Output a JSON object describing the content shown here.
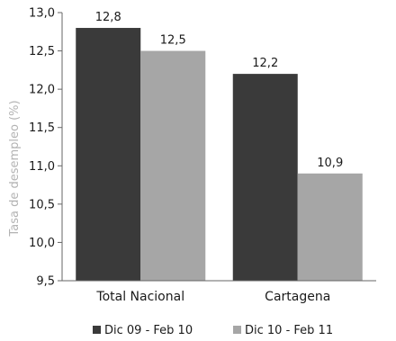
{
  "chart_data": {
    "type": "bar",
    "categories": [
      "Total Nacional",
      "Cartagena"
    ],
    "series": [
      {
        "name": "Dic 09 - Feb 10",
        "values": [
          12.8,
          12.2
        ],
        "color": "#3a3a3a"
      },
      {
        "name": "Dic 10 - Feb 11",
        "values": [
          12.5,
          10.9
        ],
        "color": "#a6a6a6"
      }
    ],
    "value_labels": [
      [
        "12,8",
        "12,2"
      ],
      [
        "12,5",
        "10,9"
      ]
    ],
    "ylabel": "Tasa de desempleo (%)",
    "ylim": [
      9.5,
      13.0
    ],
    "yticks": [
      9.5,
      10.0,
      10.5,
      11.0,
      11.5,
      12.0,
      12.5,
      13.0
    ],
    "ytick_labels": [
      "9,5",
      "10,0",
      "10,5",
      "11,0",
      "11,5",
      "12,0",
      "12,5",
      "13,0"
    ],
    "grid": false,
    "legend_position": "bottom"
  }
}
